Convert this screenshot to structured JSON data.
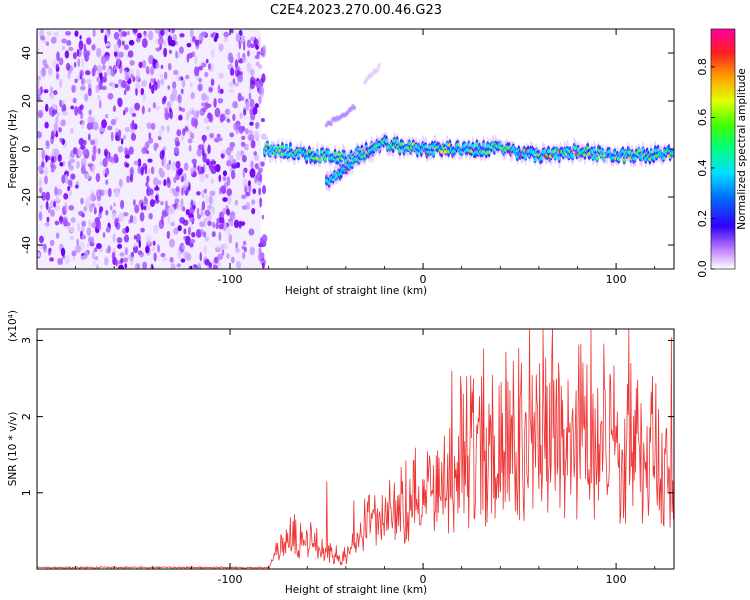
{
  "title": "C2E4.2023.270.00.46.G23",
  "chart_data": [
    {
      "type": "heatmap",
      "xlabel": "Height of straight line (km)",
      "ylabel": "Frequency (Hz)",
      "xlim": [
        -200,
        130
      ],
      "ylim": [
        -50,
        50
      ],
      "xticks": [
        -100,
        0,
        100
      ],
      "yticks": [
        -40,
        -20,
        0,
        20,
        40
      ],
      "colorbar": {
        "label": "Normalized spectral amplitude",
        "range": [
          0,
          0.95
        ],
        "ticks": [
          "0.0",
          "0.2",
          "0.4",
          "0.6",
          "0.8"
        ]
      },
      "features": {
        "noise_region_x": [
          -200,
          -84
        ],
        "main_signal": [
          {
            "x": -82,
            "y": 0
          },
          {
            "x": -60,
            "y": -2
          },
          {
            "x": -40,
            "y": -4
          },
          {
            "x": -20,
            "y": 2
          },
          {
            "x": 0,
            "y": 0
          },
          {
            "x": 20,
            "y": 0
          },
          {
            "x": 40,
            "y": 0
          },
          {
            "x": 60,
            "y": -3
          },
          {
            "x": 80,
            "y": -1
          },
          {
            "x": 100,
            "y": -3
          },
          {
            "x": 130,
            "y": -2
          }
        ],
        "lower_branch": [
          {
            "x": -50,
            "y": -14
          },
          {
            "x": -40,
            "y": -8
          },
          {
            "x": -30,
            "y": -2
          },
          {
            "x": -22,
            "y": 2
          }
        ],
        "upper_branch": [
          {
            "x": -50,
            "y": 10
          },
          {
            "x": -40,
            "y": 15
          },
          {
            "x": -35,
            "y": 18
          }
        ],
        "faint_branch": [
          {
            "x": -30,
            "y": 28
          },
          {
            "x": -22,
            "y": 35
          }
        ]
      }
    },
    {
      "type": "line",
      "xlabel": "Height of straight line (km)",
      "ylabel": "SNR (10 * v/v)",
      "y_multiplier": "(x10⁴)",
      "xlim": [
        -200,
        130
      ],
      "ylim": [
        0,
        3.15
      ],
      "xticks": [
        -100,
        0,
        100
      ],
      "yticks": [
        1,
        2,
        3
      ],
      "series_color": "#ee3333",
      "envelope": [
        {
          "x": -200,
          "y": 0.0
        },
        {
          "x": -80,
          "y": 0.01
        },
        {
          "x": -73,
          "y": 0.35
        },
        {
          "x": -60,
          "y": 0.4
        },
        {
          "x": -50,
          "y": 0.2
        },
        {
          "x": -40,
          "y": 0.15
        },
        {
          "x": -30,
          "y": 0.5
        },
        {
          "x": -20,
          "y": 0.7
        },
        {
          "x": 0,
          "y": 1.0
        },
        {
          "x": 20,
          "y": 1.35
        },
        {
          "x": 40,
          "y": 1.6
        },
        {
          "x": 60,
          "y": 1.75
        },
        {
          "x": 80,
          "y": 1.7
        },
        {
          "x": 100,
          "y": 1.6
        },
        {
          "x": 130,
          "y": 1.5
        }
      ],
      "peaks": [
        {
          "x": -50,
          "y": 1.15
        },
        {
          "x": -36,
          "y": 0.9
        },
        {
          "x": -5,
          "y": 1.42
        },
        {
          "x": 15,
          "y": 2.6
        },
        {
          "x": 26,
          "y": 2.5
        },
        {
          "x": 43,
          "y": 2.85
        },
        {
          "x": 53,
          "y": 2.05
        },
        {
          "x": 67,
          "y": 3.15
        },
        {
          "x": 97,
          "y": 2.5
        },
        {
          "x": 122,
          "y": 2.1
        }
      ]
    }
  ]
}
